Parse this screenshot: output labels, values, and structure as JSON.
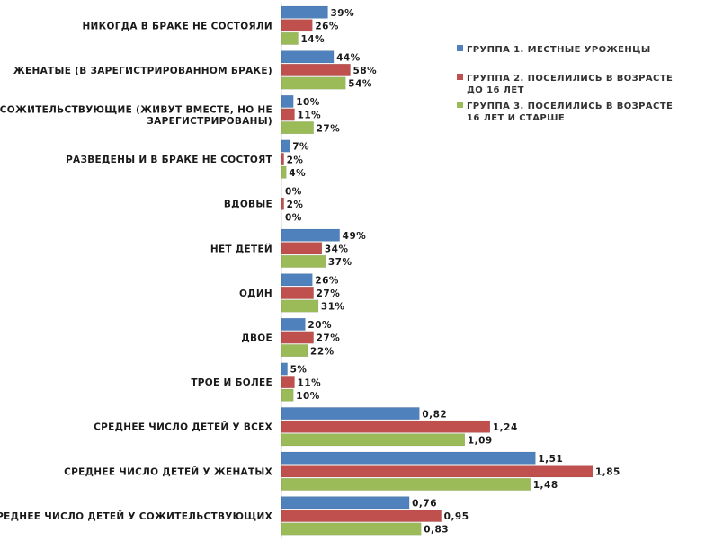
{
  "chart_data": {
    "type": "bar",
    "orientation": "horizontal",
    "grid": false,
    "legend_position": "right",
    "series_colors": [
      "#4f81bd",
      "#c0504d",
      "#9bbb59"
    ],
    "series": [
      {
        "name": "ГРУППА 1. МЕСТНЫЕ УРОЖЕНЦЫ"
      },
      {
        "name": "ГРУППА 2. ПОСЕЛИЛИСЬ В ВОЗРАСТЕ ДО 16 ЛЕТ"
      },
      {
        "name": "ГРУППА 3. ПОСЕЛИЛИСЬ В ВОЗРАСТЕ 16 ЛЕТ И СТАРШЕ"
      }
    ],
    "groups": [
      {
        "label": "НИКОГДА В БРАКЕ НЕ СОСТОЯЛИ",
        "unit": "percent",
        "values": [
          39,
          26,
          14
        ],
        "value_labels": [
          "39%",
          "26%",
          "14%"
        ]
      },
      {
        "label": "ЖЕНАТЫЕ (В ЗАРЕГИСТРИРОВАННОМ БРАКЕ)",
        "unit": "percent",
        "values": [
          44,
          58,
          54
        ],
        "value_labels": [
          "44%",
          "58%",
          "54%"
        ]
      },
      {
        "label": "СОЖИТЕЛЬСТВУЮЩИЕ (ЖИВУТ ВМЕСТЕ, НО НЕ ЗАРЕГИСТРИРОВАНЫ)",
        "unit": "percent",
        "values": [
          10,
          11,
          27
        ],
        "value_labels": [
          "10%",
          "11%",
          "27%"
        ]
      },
      {
        "label": "РАЗВЕДЕНЫ И В БРАКЕ НЕ СОСТОЯТ",
        "unit": "percent",
        "values": [
          7,
          2,
          4
        ],
        "value_labels": [
          "7%",
          "2%",
          "4%"
        ]
      },
      {
        "label": "ВДОВЫЕ",
        "unit": "percent",
        "values": [
          0,
          2,
          0
        ],
        "value_labels": [
          "0%",
          "2%",
          "0%"
        ]
      },
      {
        "label": "НЕТ ДЕТЕЙ",
        "unit": "percent",
        "values": [
          49,
          34,
          37
        ],
        "value_labels": [
          "49%",
          "34%",
          "37%"
        ]
      },
      {
        "label": "ОДИН",
        "unit": "percent",
        "values": [
          26,
          27,
          31
        ],
        "value_labels": [
          "26%",
          "27%",
          "31%"
        ]
      },
      {
        "label": "ДВОЕ",
        "unit": "percent",
        "values": [
          20,
          27,
          22
        ],
        "value_labels": [
          "20%",
          "27%",
          "22%"
        ]
      },
      {
        "label": "ТРОЕ И БОЛЕЕ",
        "unit": "percent",
        "values": [
          5,
          11,
          10
        ],
        "value_labels": [
          "5%",
          "11%",
          "10%"
        ]
      },
      {
        "label": "СРЕДНЕЕ ЧИСЛО ДЕТЕЙ У ВСЕХ",
        "unit": "children",
        "values": [
          0.82,
          1.24,
          1.09
        ],
        "value_labels": [
          "0,82",
          "1,24",
          "1,09"
        ]
      },
      {
        "label": "СРЕДНЕЕ ЧИСЛО ДЕТЕЙ У ЖЕНАТЫХ",
        "unit": "children",
        "values": [
          1.51,
          1.85,
          1.48
        ],
        "value_labels": [
          "1,51",
          "1,85",
          "1,48"
        ]
      },
      {
        "label": "СРЕДНЕЕ ЧИСЛО ДЕТЕЙ У СОЖИТЕЛЬСТВУЮЩИХ",
        "unit": "children",
        "values": [
          0.76,
          0.95,
          0.83
        ],
        "value_labels": [
          "0,76",
          "0,95",
          "0,83"
        ]
      }
    ]
  }
}
